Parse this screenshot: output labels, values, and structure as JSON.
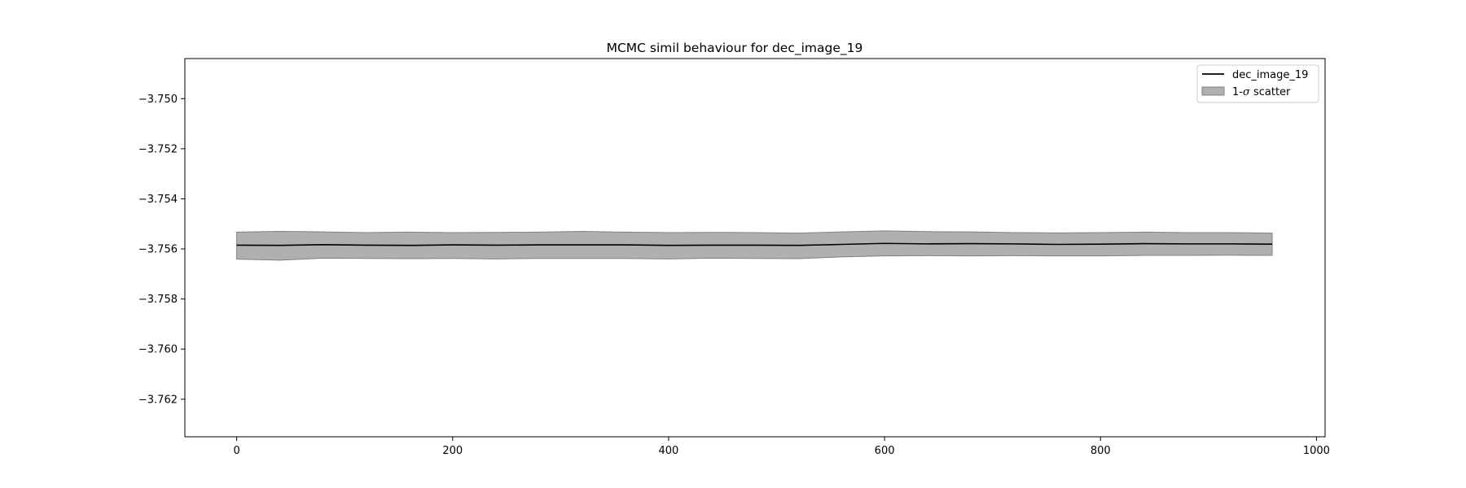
{
  "chart_data": {
    "type": "line",
    "title": "MCMC simil behaviour for dec_image_19",
    "xlabel": "",
    "ylabel": "",
    "xlim": [
      -48,
      1008
    ],
    "ylim": [
      -3.7635,
      -3.7484
    ],
    "x_ticks": [
      0,
      200,
      400,
      600,
      800,
      1000
    ],
    "x_tick_labels": [
      "0",
      "200",
      "400",
      "600",
      "800",
      "1000"
    ],
    "y_ticks": [
      -3.75,
      -3.752,
      -3.754,
      -3.756,
      -3.758,
      -3.76,
      -3.762
    ],
    "y_tick_labels": [
      "−3.750",
      "−3.752",
      "−3.754",
      "−3.756",
      "−3.758",
      "−3.760",
      "−3.762"
    ],
    "grid": false,
    "legend_position": "top-right",
    "series": [
      {
        "name": "dec_image_19",
        "color": "#000000",
        "x": [
          0,
          40,
          80,
          120,
          160,
          200,
          240,
          280,
          320,
          360,
          400,
          440,
          480,
          520,
          560,
          600,
          640,
          680,
          720,
          760,
          800,
          840,
          880,
          920,
          959
        ],
        "values": [
          -3.75585,
          -3.75586,
          -3.75583,
          -3.75585,
          -3.75586,
          -3.75584,
          -3.75585,
          -3.75584,
          -3.75584,
          -3.75584,
          -3.75586,
          -3.75585,
          -3.75585,
          -3.75586,
          -3.75582,
          -3.75578,
          -3.7558,
          -3.75579,
          -3.7558,
          -3.75582,
          -3.75581,
          -3.75579,
          -3.7558,
          -3.7558,
          -3.75581
        ]
      }
    ],
    "band": {
      "name": "1-σ scatter",
      "label_prefix": "1-",
      "label_symbol": "σ",
      "label_suffix": " scatter",
      "fill": "#b0b0b0",
      "edge": "#808080",
      "upper": [
        -3.75533,
        -3.7553,
        -3.75532,
        -3.75535,
        -3.75533,
        -3.75535,
        -3.75534,
        -3.75533,
        -3.7553,
        -3.75533,
        -3.75535,
        -3.75534,
        -3.75535,
        -3.75537,
        -3.75532,
        -3.75528,
        -3.75531,
        -3.75532,
        -3.75535,
        -3.75536,
        -3.75535,
        -3.75533,
        -3.75535,
        -3.75535,
        -3.75537
      ],
      "lower": [
        -3.75641,
        -3.75645,
        -3.75637,
        -3.75638,
        -3.75639,
        -3.75638,
        -3.7564,
        -3.75638,
        -3.75638,
        -3.75638,
        -3.7564,
        -3.75637,
        -3.75638,
        -3.75639,
        -3.75632,
        -3.75628,
        -3.75627,
        -3.75628,
        -3.75627,
        -3.75628,
        -3.75628,
        -3.75626,
        -3.75626,
        -3.75625,
        -3.75626
      ]
    }
  }
}
